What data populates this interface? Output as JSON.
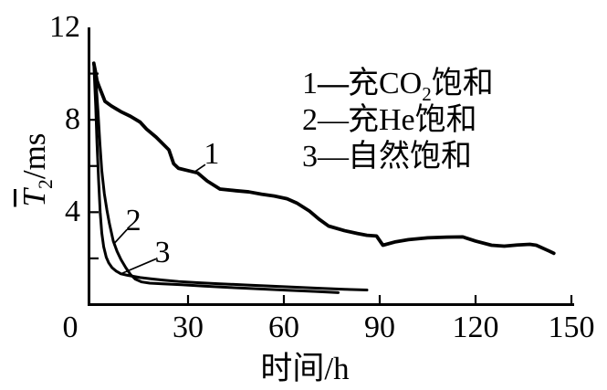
{
  "chart_data": {
    "type": "line",
    "title": "",
    "xlabel": "时间/h",
    "ylabel": "T̄₂/ms",
    "ylabel_parts": {
      "base": "T",
      "sub": "2",
      "unit": "/ms"
    },
    "xlim": [
      0,
      150
    ],
    "ylim": [
      0,
      12
    ],
    "xticks": [
      0,
      30,
      60,
      90,
      120,
      150
    ],
    "ytick_labels": [
      {
        "v": 12,
        "label": "12"
      },
      {
        "v": 8,
        "label": "8"
      },
      {
        "v": 4,
        "label": "4"
      }
    ],
    "yticks_minor": [
      2,
      4,
      6,
      8,
      10
    ],
    "grid": false,
    "line_color": "#000000",
    "axis_color": "#000000",
    "legend_position": "upper-right-inside",
    "series": [
      {
        "id": "1",
        "name": "充CO₂饱和",
        "points": [
          [
            0.5,
            10.45
          ],
          [
            1,
            10.1
          ],
          [
            1.5,
            9.7
          ],
          [
            2,
            9.5
          ],
          [
            4,
            8.8
          ],
          [
            6,
            8.6
          ],
          [
            9,
            8.35
          ],
          [
            12,
            8.15
          ],
          [
            15,
            7.9
          ],
          [
            17,
            7.6
          ],
          [
            20,
            7.25
          ],
          [
            24,
            6.7
          ],
          [
            25.5,
            6.1
          ],
          [
            27,
            5.9
          ],
          [
            30,
            5.8
          ],
          [
            33,
            5.7
          ],
          [
            36,
            5.35
          ],
          [
            40,
            5.0
          ],
          [
            45,
            4.93
          ],
          [
            49,
            4.88
          ],
          [
            53,
            4.78
          ],
          [
            57,
            4.7
          ],
          [
            61,
            4.58
          ],
          [
            64,
            4.4
          ],
          [
            68,
            4.05
          ],
          [
            71,
            3.7
          ],
          [
            74,
            3.4
          ],
          [
            79,
            3.2
          ],
          [
            83,
            3.08
          ],
          [
            86,
            3.0
          ],
          [
            89,
            2.97
          ],
          [
            91,
            2.57
          ],
          [
            95,
            2.72
          ],
          [
            99,
            2.81
          ],
          [
            105,
            2.89
          ],
          [
            111,
            2.92
          ],
          [
            116,
            2.93
          ],
          [
            120,
            2.75
          ],
          [
            125,
            2.57
          ],
          [
            129,
            2.53
          ],
          [
            133,
            2.58
          ],
          [
            137,
            2.61
          ],
          [
            139,
            2.57
          ],
          [
            143,
            2.32
          ],
          [
            144.5,
            2.22
          ]
        ]
      },
      {
        "id": "2",
        "name": "充He饱和",
        "points": [
          [
            0.5,
            10.45
          ],
          [
            1.2,
            9.6
          ],
          [
            1.8,
            8.4
          ],
          [
            2.4,
            7.0
          ],
          [
            3,
            5.8
          ],
          [
            3.8,
            4.8
          ],
          [
            4.6,
            4.1
          ],
          [
            5.4,
            3.5
          ],
          [
            6.6,
            2.75
          ],
          [
            7.8,
            2.3
          ],
          [
            9,
            1.95
          ],
          [
            10.5,
            1.6
          ],
          [
            12,
            1.3
          ],
          [
            13.5,
            1.1
          ],
          [
            15.5,
            0.98
          ],
          [
            18,
            0.93
          ],
          [
            22,
            0.9
          ],
          [
            28,
            0.86
          ],
          [
            35,
            0.8
          ],
          [
            43,
            0.74
          ],
          [
            52,
            0.68
          ],
          [
            61,
            0.62
          ],
          [
            70,
            0.57
          ],
          [
            77,
            0.52
          ]
        ]
      },
      {
        "id": "3",
        "name": "自然饱和",
        "points": [
          [
            0.5,
            10.45
          ],
          [
            1.1,
            8.6
          ],
          [
            1.5,
            7.0
          ],
          [
            2,
            5.4
          ],
          [
            2.5,
            4.0
          ],
          [
            3,
            3.1
          ],
          [
            3.6,
            2.5
          ],
          [
            4.4,
            2.05
          ],
          [
            5.2,
            1.8
          ],
          [
            6.2,
            1.6
          ],
          [
            7.5,
            1.45
          ],
          [
            9,
            1.33
          ],
          [
            11,
            1.27
          ],
          [
            13,
            1.22
          ],
          [
            15,
            1.17
          ],
          [
            18,
            1.12
          ],
          [
            22,
            1.06
          ],
          [
            27,
            1.0
          ],
          [
            33,
            0.95
          ],
          [
            40,
            0.9
          ],
          [
            48,
            0.85
          ],
          [
            56,
            0.8
          ],
          [
            64,
            0.75
          ],
          [
            72,
            0.7
          ],
          [
            79,
            0.66
          ],
          [
            86,
            0.63
          ]
        ]
      }
    ],
    "annotations": [
      {
        "label": "1",
        "x": 37.4,
        "y": 6.53,
        "leader": [
          [
            35.4,
            6.06
          ],
          [
            32.0,
            5.74
          ]
        ]
      },
      {
        "label": "2",
        "x": 12.9,
        "y": 3.64,
        "leader": [
          [
            10.9,
            3.25
          ],
          [
            6.9,
            2.65
          ]
        ]
      },
      {
        "label": "3",
        "x": 22.0,
        "y": 2.26,
        "leader": [
          [
            20.0,
            1.98
          ],
          [
            8.6,
            1.31
          ]
        ]
      }
    ]
  },
  "legend": {
    "entries": [
      {
        "num": "1",
        "dash": "—",
        "pre": "充CO",
        "sub": "2",
        "post": "饱和",
        "bold_dash": true
      },
      {
        "num": "2",
        "dash": "—",
        "pre": "充He",
        "sub": "",
        "post": "饱和",
        "bold_dash": false
      },
      {
        "num": "3",
        "dash": "—",
        "pre": "自然",
        "sub": "",
        "post": "饱和",
        "bold_dash": false
      }
    ]
  }
}
